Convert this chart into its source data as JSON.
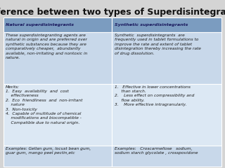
{
  "title": "Difference between two types of Superdisintegrants",
  "title_fontsize": 9.0,
  "title_fontweight": "bold",
  "bg_color": "#d4d4d4",
  "header_bg": "#7b9cc0",
  "header_text_color": "#1a1a5e",
  "cell_bg_light": "#c8d8ea",
  "cell_bg_white": "#dce8f4",
  "border_color": "#ffffff",
  "col1_header": "Natural superdisintegrants",
  "col2_header": "Synthetic superdisintegrants",
  "col1_row1": "These superdisintegranting agents are\nnatural in origin and are preferred over\nsynthetic substances because they are\ncomparatively cheaper,  abundantly\navailable, non-irritating and nontoxic in\nnature.",
  "col2_row1": "Synthetic  superdisintegrants  are\nfrequently used in tablet formulations to\nimprove the rate and extent of tablet\ndisintegration thereby increasing the rate\nof drug dissolution.",
  "col1_row2": "Merits:\n1.  Easy  availability  and  cost\n    effectiveness\n2.  Eco  friendliness  and  non-irritant\n    nature\n3.  Non-toxicity\n4.  Capable of multitude of chemical\n    modifications and biocompatible -\n    Compatible due to natural origin.",
  "col2_row2": "1.   Effective in lower concentrations\n     than starch.\n2.    Less effect on compressibility and\n     flow ability.\n3.    More effective intragranularly.",
  "col1_row3": "Examples: Gellan gum, locust bean gum,\nguar gum, mango peel pectin,etc",
  "col2_row3": "Examples:   Croscarmellose   sodium,\nsodium starch glycolate , crosspovidone",
  "text_fontsize": 4.2,
  "header_fontsize": 4.6
}
